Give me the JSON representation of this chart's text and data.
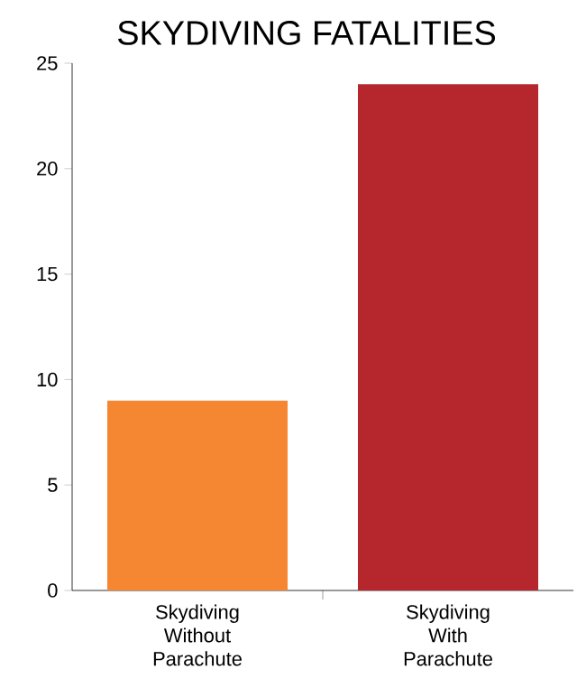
{
  "chart_data": {
    "type": "bar",
    "title": "SKYDIVING FATALITIES",
    "categories": [
      "Skydiving Without Parachute",
      "Skydiving With Parachute"
    ],
    "values": [
      9,
      24
    ],
    "colors": [
      "#f58733",
      "#b5272d"
    ],
    "ylim": [
      0,
      25
    ],
    "yticks": [
      0,
      5,
      10,
      15,
      20,
      25
    ]
  }
}
